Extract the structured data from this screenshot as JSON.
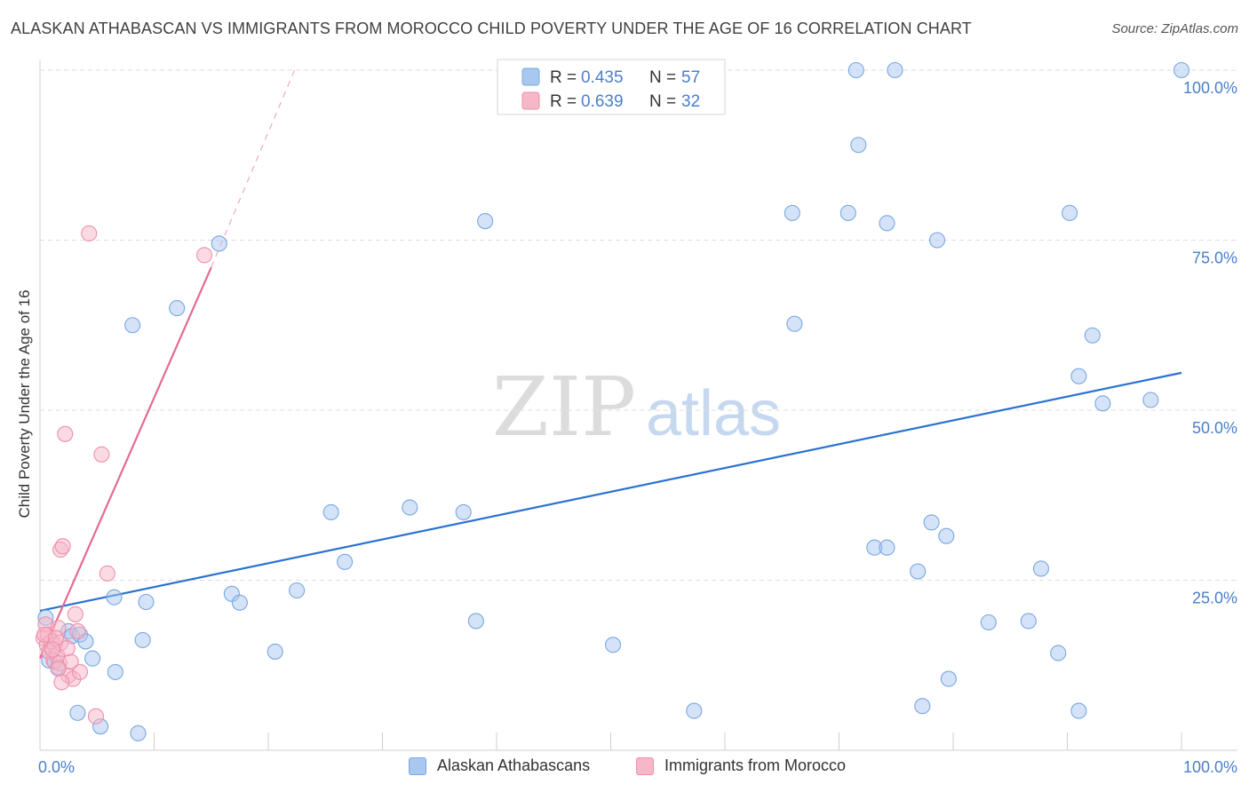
{
  "header": {
    "title": "ALASKAN ATHABASCAN VS IMMIGRANTS FROM MOROCCO CHILD POVERTY UNDER THE AGE OF 16 CORRELATION CHART",
    "source": "Source: ZipAtlas.com"
  },
  "watermark": {
    "zip": "ZIP",
    "atlas": "atlas"
  },
  "colors": {
    "blue_fill": "#a9c8ef",
    "blue_stroke": "#7aa7e0",
    "blue_line": "#2a72d0",
    "pink_fill": "#f6b7c9",
    "pink_stroke": "#ee8fab",
    "pink_line": "#e46b93",
    "axis_text": "#4a7fc9",
    "grid": "#dedede"
  },
  "chart_data": {
    "type": "scatter",
    "title": "ALASKAN ATHABASCAN VS IMMIGRANTS FROM MOROCCO CHILD POVERTY UNDER THE AGE OF 16 CORRELATION CHART",
    "xlabel": "",
    "ylabel": "Child Poverty Under the Age of 16",
    "xlim": [
      0,
      100
    ],
    "ylim": [
      0,
      100
    ],
    "x_tick_labels": {
      "left": "0.0%",
      "right": "100.0%"
    },
    "y_tick_labels": [
      "25.0%",
      "50.0%",
      "75.0%",
      "100.0%"
    ],
    "y_tick_values": [
      25,
      50,
      75,
      100
    ],
    "legend_position": "top-center",
    "series": [
      {
        "name": "Alaskan Athabascans",
        "R": "0.435",
        "N": "57",
        "trend": {
          "x": [
            0,
            100
          ],
          "y": [
            20.5,
            55.5
          ]
        },
        "points": [
          [
            0.5,
            19.5
          ],
          [
            0.8,
            13.2
          ],
          [
            1.3,
            13.0
          ],
          [
            1.6,
            12.2
          ],
          [
            2.5,
            17.5
          ],
          [
            2.8,
            16.8
          ],
          [
            3.5,
            17.0
          ],
          [
            4.0,
            16.0
          ],
          [
            4.6,
            13.5
          ],
          [
            3.3,
            5.5
          ],
          [
            5.3,
            3.5
          ],
          [
            6.5,
            22.5
          ],
          [
            6.6,
            11.5
          ],
          [
            8.1,
            62.5
          ],
          [
            8.6,
            2.5
          ],
          [
            9.0,
            16.2
          ],
          [
            9.3,
            21.8
          ],
          [
            12.0,
            65.0
          ],
          [
            15.7,
            74.5
          ],
          [
            16.8,
            23.0
          ],
          [
            17.5,
            21.7
          ],
          [
            20.6,
            14.5
          ],
          [
            22.5,
            23.5
          ],
          [
            25.5,
            35.0
          ],
          [
            26.7,
            27.7
          ],
          [
            32.4,
            35.7
          ],
          [
            37.1,
            35.0
          ],
          [
            38.2,
            19.0
          ],
          [
            39.0,
            77.8
          ],
          [
            50.2,
            15.5
          ],
          [
            57.3,
            5.8
          ],
          [
            65.9,
            79.0
          ],
          [
            66.1,
            62.7
          ],
          [
            70.8,
            79.0
          ],
          [
            71.5,
            100.0
          ],
          [
            71.7,
            89.0
          ],
          [
            73.1,
            29.8
          ],
          [
            74.2,
            77.5
          ],
          [
            74.2,
            29.8
          ],
          [
            74.9,
            100.0
          ],
          [
            76.9,
            26.3
          ],
          [
            77.3,
            6.5
          ],
          [
            78.1,
            33.5
          ],
          [
            78.6,
            75.0
          ],
          [
            79.4,
            31.5
          ],
          [
            79.6,
            10.5
          ],
          [
            83.1,
            18.8
          ],
          [
            86.6,
            19.0
          ],
          [
            87.7,
            26.7
          ],
          [
            89.2,
            14.3
          ],
          [
            90.2,
            79.0
          ],
          [
            91.0,
            5.8
          ],
          [
            91.0,
            55.0
          ],
          [
            92.2,
            61.0
          ],
          [
            93.1,
            51.0
          ],
          [
            97.3,
            51.5
          ],
          [
            100.0,
            100.0
          ]
        ]
      },
      {
        "name": "Immigrants from Morocco",
        "R": "0.639",
        "N": "32",
        "trend": {
          "x": [
            0,
            15
          ],
          "y": [
            13.5,
            71.0
          ]
        },
        "trend_dashed": {
          "x": [
            15,
            22.3
          ],
          "y": [
            71.0,
            100.0
          ]
        },
        "points": [
          [
            0.3,
            16.5
          ],
          [
            0.5,
            18.5
          ],
          [
            0.6,
            15.5
          ],
          [
            0.7,
            17.0
          ],
          [
            0.8,
            14.5
          ],
          [
            1.0,
            16.0
          ],
          [
            1.2,
            13.2
          ],
          [
            1.3,
            15.5
          ],
          [
            1.5,
            14.0
          ],
          [
            1.6,
            18.0
          ],
          [
            1.7,
            12.8
          ],
          [
            1.8,
            15.8
          ],
          [
            1.8,
            29.5
          ],
          [
            2.0,
            30.0
          ],
          [
            2.2,
            46.5
          ],
          [
            2.5,
            11.0
          ],
          [
            2.7,
            13.0
          ],
          [
            2.9,
            10.5
          ],
          [
            3.1,
            20.0
          ],
          [
            3.3,
            17.5
          ],
          [
            3.5,
            11.5
          ],
          [
            4.3,
            76.0
          ],
          [
            4.9,
            5.0
          ],
          [
            5.4,
            43.5
          ],
          [
            5.9,
            26.0
          ],
          [
            14.4,
            72.8
          ],
          [
            0.4,
            17.0
          ],
          [
            1.4,
            16.5
          ],
          [
            1.6,
            12.0
          ],
          [
            1.9,
            10.0
          ],
          [
            2.4,
            15.0
          ],
          [
            1.1,
            14.8
          ]
        ]
      }
    ]
  }
}
